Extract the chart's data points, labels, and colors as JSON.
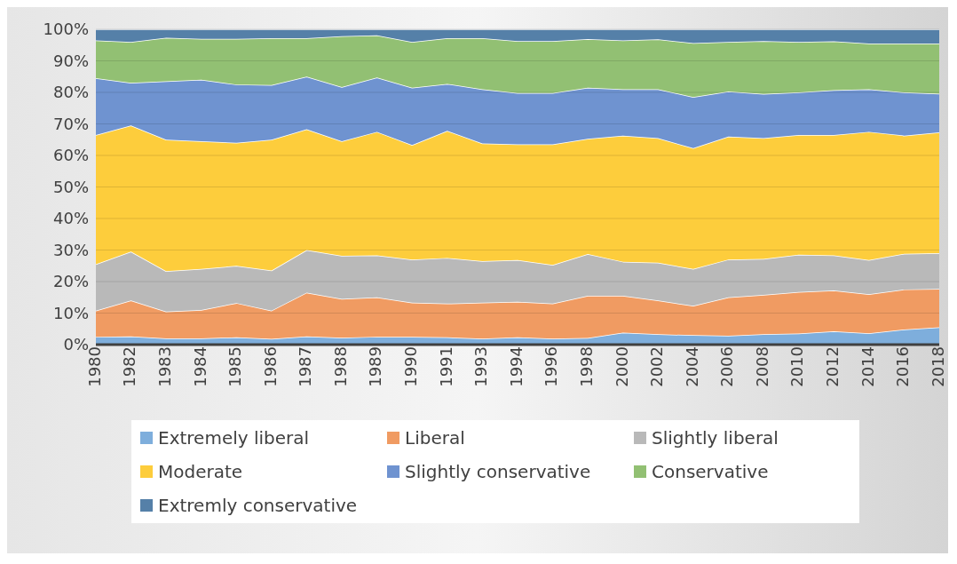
{
  "chart_data": {
    "type": "area",
    "stacked": true,
    "categories": [
      "1980",
      "1982",
      "1983",
      "1984",
      "1985",
      "1986",
      "1987",
      "1988",
      "1989",
      "1990",
      "1991",
      "1993",
      "1994",
      "1996",
      "1998",
      "2000",
      "2002",
      "2004",
      "2006",
      "2008",
      "2010",
      "2012",
      "2014",
      "2016",
      "2018"
    ],
    "ylim": [
      0,
      100
    ],
    "yticks": [
      {
        "value": 0,
        "label": "0%"
      },
      {
        "value": 10,
        "label": "10%"
      },
      {
        "value": 20,
        "label": "20%"
      },
      {
        "value": 30,
        "label": "30%"
      },
      {
        "value": 40,
        "label": "40%"
      },
      {
        "value": 50,
        "label": "50%"
      },
      {
        "value": 60,
        "label": "60%"
      },
      {
        "value": 70,
        "label": "70%"
      },
      {
        "value": 80,
        "label": "80%"
      },
      {
        "value": 90,
        "label": "90%"
      },
      {
        "value": 100,
        "label": "100%"
      }
    ],
    "grid": "y",
    "legend": "bottom",
    "series": [
      {
        "name": "Extremely liberal",
        "color": "#7eaedc",
        "values": [
          2.5,
          2.6,
          2,
          2,
          2.3,
          1.8,
          2.6,
          2.2,
          2.5,
          2.5,
          2.3,
          1.9,
          2.3,
          1.9,
          2.1,
          3.8,
          3.3,
          3,
          2.8,
          3.3,
          3.5,
          4.2,
          3.6,
          4.8,
          5.5
        ]
      },
      {
        "name": "Liberal",
        "color": "#f09b62",
        "values": [
          8.3,
          11.4,
          8.5,
          9,
          10.9,
          9,
          13.9,
          12.3,
          12.5,
          10.8,
          10.7,
          11.4,
          11.3,
          11.1,
          13.4,
          11.7,
          10.7,
          9.3,
          12.2,
          12.5,
          13.2,
          13,
          12.4,
          12.7,
          12.2
        ]
      },
      {
        "name": "Slightly liberal",
        "color": "#b9b9b9",
        "values": [
          14.7,
          15.5,
          12.8,
          13,
          11.8,
          12.7,
          13.5,
          13.7,
          13.3,
          13.7,
          14.5,
          13.2,
          13.2,
          12.3,
          13.2,
          10.8,
          12,
          11.7,
          12,
          11.4,
          11.8,
          11.1,
          10.8,
          11.3,
          11.3
        ]
      },
      {
        "name": "Moderate",
        "color": "#fdcd3c",
        "values": [
          41,
          40,
          41.7,
          40.5,
          39,
          41.5,
          38.3,
          36.3,
          39.2,
          36.3,
          40.3,
          37.3,
          36.7,
          38.2,
          36.6,
          40,
          39.5,
          38.3,
          39,
          38.3,
          38,
          38.2,
          40.7,
          37.5,
          38.3
        ]
      },
      {
        "name": "Slightly conservative",
        "color": "#6f93d0",
        "values": [
          18,
          13.5,
          18.5,
          19.5,
          18.5,
          17.3,
          16.7,
          17.2,
          17.2,
          18.2,
          14.9,
          17.2,
          16.3,
          16.3,
          16.2,
          14.7,
          15.5,
          16.2,
          14.3,
          14,
          13.5,
          14.2,
          13.5,
          13.7,
          12.3
        ]
      },
      {
        "name": "Conservative",
        "color": "#92c073",
        "values": [
          12,
          13,
          13.8,
          13,
          14.5,
          14.9,
          12.2,
          16.1,
          13.4,
          14.5,
          14.5,
          16.2,
          16.5,
          16.5,
          15.4,
          15.5,
          15.8,
          17.1,
          15.7,
          16.8,
          16,
          15.5,
          14.5,
          15.5,
          15.9
        ]
      },
      {
        "name": "Extremly conservative",
        "color": "#5580a8",
        "values": [
          3.5,
          4,
          2.7,
          3,
          3,
          2.8,
          2.8,
          2.2,
          1.9,
          4,
          2.8,
          2.8,
          3.7,
          3.7,
          3.1,
          3.5,
          3.2,
          4.4,
          4,
          3.7,
          4,
          3.8,
          4.5,
          4.5,
          4.5
        ]
      }
    ]
  }
}
